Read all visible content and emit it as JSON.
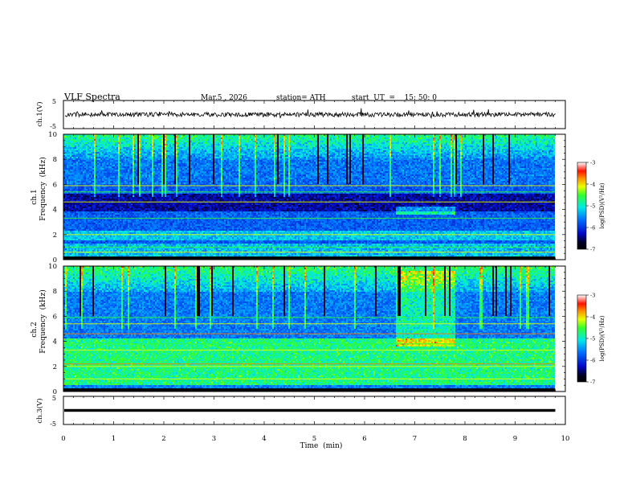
{
  "header": {
    "title": "VLF  Spectra",
    "date": "Mar.5  , 2026",
    "station": "station= ATH",
    "start_time": "start  UT  =    15: 50: 0"
  },
  "chart_data": [
    {
      "type": "line",
      "ylabel": "ch.1(V)",
      "yticks": [
        "5",
        "-5"
      ],
      "ylim": [
        -5,
        5
      ],
      "xlim": [
        0,
        10
      ],
      "trace": "noisy signal centred near 0 V, typical amplitude about 1 V, spikes to about 2 V",
      "x_end": 9.8
    },
    {
      "type": "heatmap",
      "ylabel": [
        "ch.1",
        "Frequency  (kHz)"
      ],
      "yticks": [
        "0",
        "2",
        "4",
        "6",
        "8",
        "10"
      ],
      "ylim": [
        0,
        10
      ],
      "xlim": [
        0,
        10
      ],
      "x_end": 9.8,
      "colorbar": {
        "label": "log(PSD)(V²/Hz)",
        "ticks": [
          "-3",
          "-4",
          "-5",
          "-6",
          "-7"
        ],
        "range": [
          -7,
          -3
        ]
      },
      "features": {
        "dark_band_khz": [
          3.9,
          5.2
        ],
        "bright_band_khz": [
          1.5,
          2.3
        ],
        "event_time_min": [
          6.6,
          7.8
        ],
        "event_freq_khz": [
          3.6,
          4.2
        ]
      }
    },
    {
      "type": "heatmap",
      "ylabel": [
        "ch.2",
        "Frequency  (kHz)"
      ],
      "yticks": [
        "0",
        "2",
        "4",
        "6",
        "8",
        "10"
      ],
      "ylim": [
        0,
        10
      ],
      "xlim": [
        0,
        10
      ],
      "x_end": 9.8,
      "colorbar": {
        "label": "log(PSD)(V²/Hz)",
        "ticks": [
          "-3",
          "-4",
          "-5",
          "-6",
          "-7"
        ],
        "range": [
          -7,
          -3
        ]
      },
      "features": {
        "bright_band_khz": [
          0.5,
          4.2
        ],
        "hot_lines_khz": [
          2.0,
          2.2,
          3.3,
          4.6
        ],
        "event_time_min": [
          6.6,
          7.8
        ],
        "event_freq_khz": [
          3.6,
          9.6
        ]
      }
    },
    {
      "type": "line",
      "ylabel": "ch.3(V)",
      "yticks": [
        "5",
        "-5"
      ],
      "ylim": [
        -5,
        5
      ],
      "xlim": [
        0,
        10
      ],
      "trace": "flat line at about 0 V",
      "x_end": 9.8
    }
  ],
  "xaxis": {
    "label": "Time  (min)",
    "ticks": [
      "0",
      "1",
      "2",
      "3",
      "4",
      "5",
      "6",
      "7",
      "8",
      "9",
      "10"
    ],
    "range": [
      0,
      10
    ]
  }
}
